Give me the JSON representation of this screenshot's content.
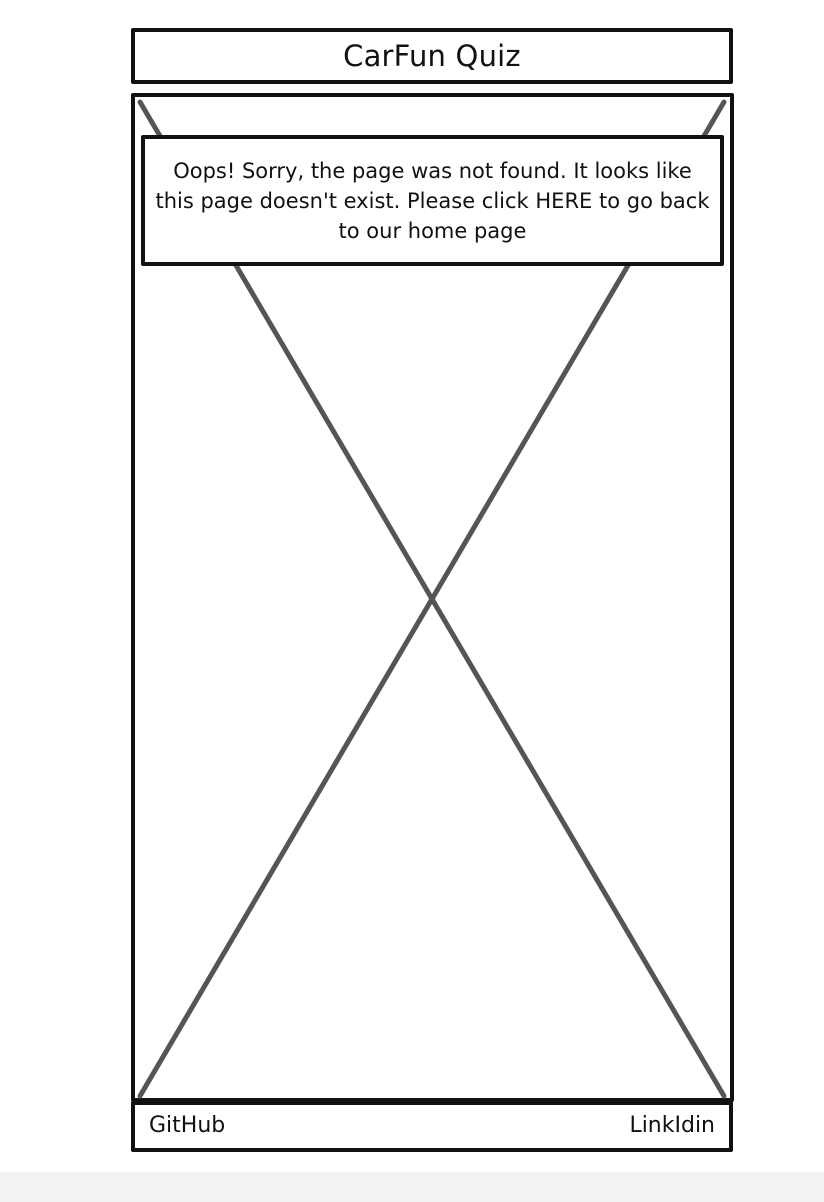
{
  "header": {
    "title": "CarFun Quiz"
  },
  "main": {
    "placeholder_icon": "image-placeholder-cross",
    "notice": "Oops! Sorry, the page was not found. It looks like this page doesn't exist. Please click HERE to go back to our home page"
  },
  "footer": {
    "links": [
      {
        "label": "GitHub"
      },
      {
        "label": "LinkIdin"
      }
    ]
  },
  "colors": {
    "border": "#111111",
    "cross_lines": "#555555",
    "background": "#ffffff"
  }
}
